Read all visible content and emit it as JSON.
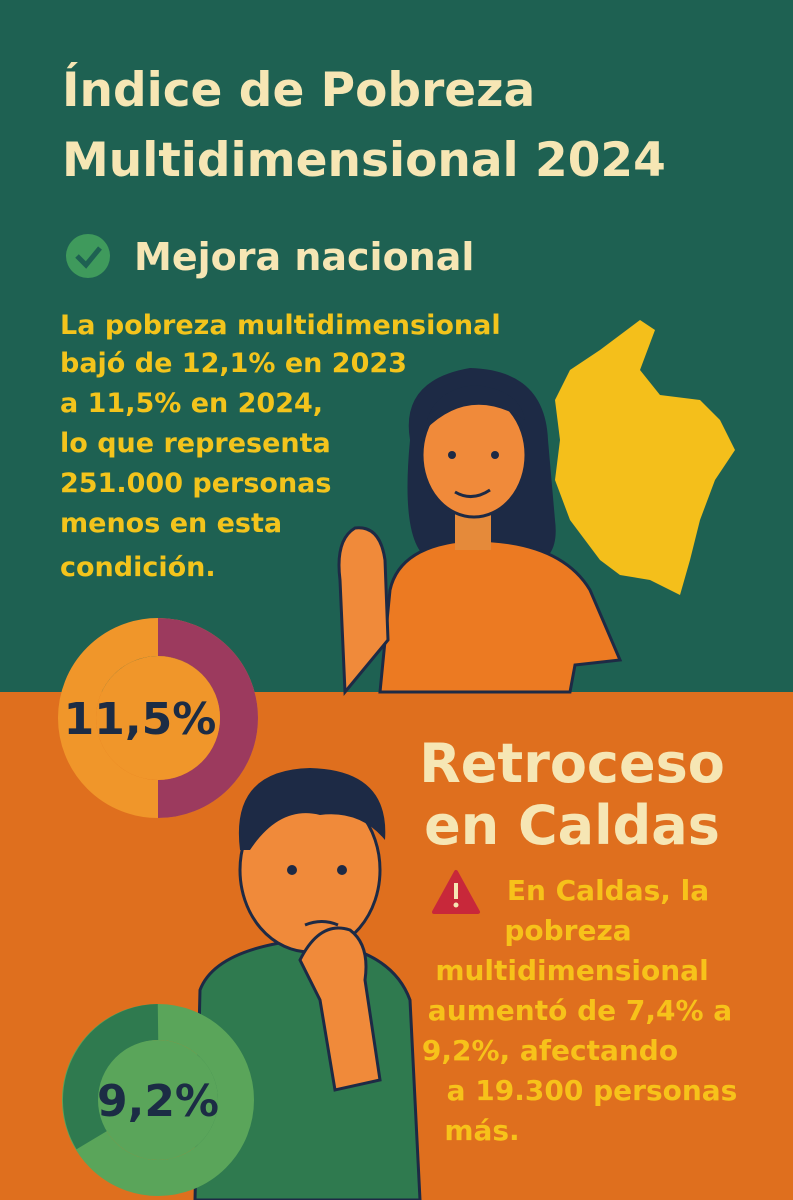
{
  "title": {
    "lines": [
      "Índice de Pobreza",
      "Multidimensional 2024"
    ]
  },
  "national": {
    "heading": "Mejora nacional",
    "text": [
      "La pobreza multidimensional",
      "bajó de 12,1% en 2023",
      "a 11,5% en 2024,",
      "lo que representa",
      "251.000 personas",
      "menos en esta",
      "condición."
    ],
    "donut_label": "11,5%"
  },
  "caldas": {
    "heading": [
      "Retroceso",
      "en Caldas"
    ],
    "text": [
      "En Caldas, la",
      "pobreza",
      "multidimensional",
      "aumentó de 7,4% a",
      "9,2%, afectando",
      "a 19.300 personas",
      "más."
    ],
    "donut_label": "9,2%"
  }
}
